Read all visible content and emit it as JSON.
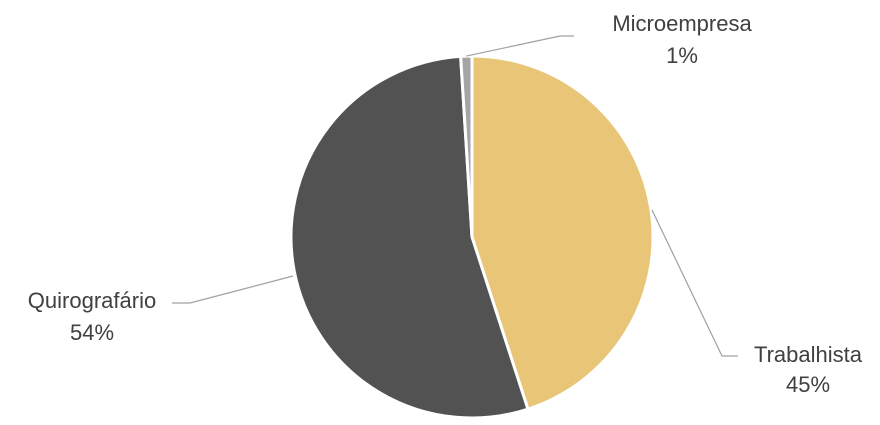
{
  "chart_data": {
    "type": "pie",
    "title": "",
    "slices": [
      {
        "label": "Trabalhista",
        "value": 45,
        "pct_label": "45%",
        "color": "#E8C577"
      },
      {
        "label": "Quirografário",
        "value": 54,
        "pct_label": "54%",
        "color": "#525252"
      },
      {
        "label": "Microempresa",
        "value": 1,
        "pct_label": "1%",
        "color": "#A5A5A5"
      }
    ],
    "legend": "none",
    "data_labels": "outside-with-leader-lines"
  },
  "palette": {
    "background": "#ffffff",
    "slice_border": "#ffffff",
    "leader_line": "#A0A0A0",
    "label_text": "#404040"
  }
}
